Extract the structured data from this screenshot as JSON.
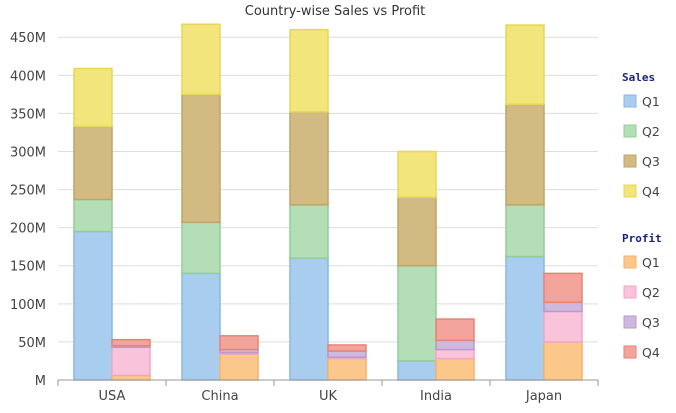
{
  "chart_data": {
    "type": "bar",
    "title": "Country-wise Sales vs Profit",
    "categories": [
      "USA",
      "China",
      "UK",
      "India",
      "Japan"
    ],
    "ylim": [
      0,
      470
    ],
    "yticks": [
      0,
      50,
      100,
      150,
      200,
      250,
      300,
      350,
      400,
      450
    ],
    "ytick_labels": [
      "M",
      "50M",
      "100M",
      "150M",
      "200M",
      "250M",
      "300M",
      "350M",
      "400M",
      "450M"
    ],
    "grid": true,
    "legend_position": "right",
    "groups": [
      {
        "name": "Sales",
        "series": [
          {
            "name": "Q1",
            "color": "#a9cdee",
            "stroke": "#8ab8e4",
            "values": [
              195,
              140,
              160,
              25,
              162
            ]
          },
          {
            "name": "Q2",
            "color": "#b3deb6",
            "stroke": "#93cd98",
            "values": [
              42,
              67,
              70,
              125,
              68
            ]
          },
          {
            "name": "Q3",
            "color": "#d1bb83",
            "stroke": "#bfa566",
            "values": [
              96,
              168,
              122,
              90,
              132
            ]
          },
          {
            "name": "Q4",
            "color": "#f2e57c",
            "stroke": "#e6d75a",
            "values": [
              76,
              92,
              108,
              60,
              104
            ]
          }
        ]
      },
      {
        "name": "Profit",
        "series": [
          {
            "name": "Q1",
            "color": "#fcc78a",
            "stroke": "#f6b26b",
            "values": [
              6,
              34,
              28,
              28,
              50
            ]
          },
          {
            "name": "Q2",
            "color": "#f9c3db",
            "stroke": "#f2a6c7",
            "values": [
              37,
              2,
              2,
              12,
              40
            ]
          },
          {
            "name": "Q3",
            "color": "#cfb8dd",
            "stroke": "#b79acb",
            "values": [
              2,
              4,
              8,
              12,
              12
            ]
          },
          {
            "name": "Q4",
            "color": "#f2a39a",
            "stroke": "#e68476",
            "values": [
              8,
              18,
              8,
              28,
              38
            ]
          }
        ]
      }
    ]
  }
}
